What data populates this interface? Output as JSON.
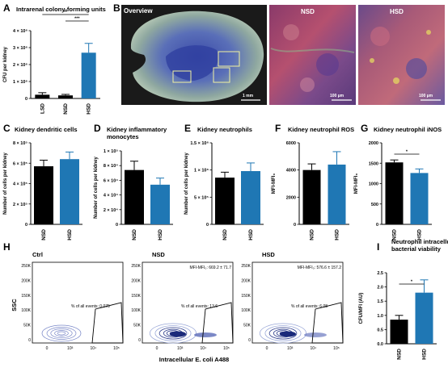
{
  "panels": {
    "A": "A",
    "B": "B",
    "C": "C",
    "D": "D",
    "E": "E",
    "F": "F",
    "G": "G",
    "H": "H",
    "I": "I"
  },
  "micrographs": {
    "overview_label": "Overview",
    "nsd_label": "NSD",
    "hsd_label": "HSD",
    "scale_overview": "1 mm",
    "scale_nsd": "100 µm",
    "scale_hsd": "100 µm"
  },
  "flow": {
    "ylabel": "SSC",
    "xlabel": "Intracellular E. coli A488",
    "yticks": [
      "250K",
      "200K",
      "150K",
      "100K",
      "50K",
      "0"
    ],
    "xticks": [
      "0",
      "10³",
      "10⁴",
      "10⁵"
    ],
    "plots": [
      {
        "title": "Ctrl",
        "gate_text": "% of all events:  0.075",
        "mfi": ""
      },
      {
        "title": "NSD",
        "gate_text": "% of all events:  13.6",
        "mfi": "MFI-MFI₀: 669.2 ± 71.7"
      },
      {
        "title": "HSD",
        "gate_text": "% of all events:  6.08",
        "mfi": "MFI-MFI₀: 576.6 ± 157.2"
      }
    ]
  },
  "chart_data": [
    {
      "panel": "A",
      "type": "bar",
      "title": "Intrarenal colony-forming units",
      "ylabel": "CFU per kidney",
      "categories": [
        "LSD",
        "NSD",
        "HSD"
      ],
      "values": [
        220000.0,
        180000.0,
        2700000.0
      ],
      "errors": [
        120000.0,
        60000.0,
        550000.0
      ],
      "colors": [
        "#000000",
        "#000000",
        "#1f77b4"
      ],
      "ylim": [
        0,
        4000000.0
      ],
      "yticks": [
        0,
        1000000.0,
        2000000.0,
        3000000.0,
        4000000.0
      ],
      "yticklabels": [
        "0",
        "1 × 10⁶",
        "2 × 10⁶",
        "3 × 10⁶",
        "4 × 10⁶"
      ],
      "significance": [
        {
          "from": 0,
          "to": 2,
          "label": "**"
        },
        {
          "from": 1,
          "to": 2,
          "label": "***"
        }
      ]
    },
    {
      "panel": "C",
      "type": "bar",
      "title": "Kidney dendritic cells",
      "ylabel": "Number of cells per kidney",
      "categories": [
        "NSD",
        "HSD"
      ],
      "values": [
        570000.0,
        640000.0
      ],
      "errors": [
        60000.0,
        70000.0
      ],
      "colors": [
        "#000000",
        "#1f77b4"
      ],
      "ylim": [
        0,
        800000.0
      ],
      "yticks": [
        0,
        200000.0,
        400000.0,
        600000.0,
        800000.0
      ],
      "yticklabels": [
        "0",
        "2 × 10⁵",
        "4 × 10⁵",
        "6 × 10⁵",
        "8 × 10⁵"
      ],
      "significance": []
    },
    {
      "panel": "D",
      "type": "bar",
      "title": "Kidney inflammatory monocytes",
      "ylabel": "Number of cells per kidney",
      "categories": [
        "NSD",
        "HSD"
      ],
      "values": [
        74000.0,
        54000.0
      ],
      "errors": [
        12000.0,
        9000.0
      ],
      "colors": [
        "#000000",
        "#1f77b4"
      ],
      "ylim": [
        0,
        100000.0
      ],
      "yticks": [
        0,
        20000.0,
        40000.0,
        60000.0,
        80000.0,
        100000.0
      ],
      "yticklabels": [
        "0",
        "2 × 10⁴",
        "4 × 10⁴",
        "6 × 10⁴",
        "8 × 10⁴",
        "1 × 10⁵"
      ],
      "significance": []
    },
    {
      "panel": "E",
      "type": "bar",
      "title": "Kidney neutrophils",
      "ylabel": "Number of cells per kidney",
      "categories": [
        "NSD",
        "HSD"
      ],
      "values": [
        860000.0,
        980000.0
      ],
      "errors": [
        100000.0,
        150000.0
      ],
      "colors": [
        "#000000",
        "#1f77b4"
      ],
      "ylim": [
        0,
        1500000.0
      ],
      "yticks": [
        0,
        500000.0,
        1000000.0,
        1500000.0
      ],
      "yticklabels": [
        "0",
        "5 × 10⁵",
        "1 × 10⁶",
        "1.5 × 10⁶"
      ],
      "significance": []
    },
    {
      "panel": "F",
      "type": "bar",
      "title": "Kidney neutrophil ROS",
      "ylabel": "MFI-MFI₀",
      "categories": [
        "NSD",
        "HSD"
      ],
      "values": [
        4000,
        4400
      ],
      "errors": [
        450,
        950
      ],
      "colors": [
        "#000000",
        "#1f77b4"
      ],
      "ylim": [
        0,
        6000
      ],
      "yticks": [
        0,
        2000,
        4000,
        6000
      ],
      "yticklabels": [
        "0",
        "2000",
        "4000",
        "6000"
      ],
      "significance": []
    },
    {
      "panel": "G",
      "type": "bar",
      "title": "Kidney neutrophil iNOS",
      "ylabel": "MFI-MFI₀",
      "categories": [
        "NSD",
        "HSD"
      ],
      "values": [
        1520,
        1260
      ],
      "errors": [
        60,
        100
      ],
      "colors": [
        "#000000",
        "#1f77b4"
      ],
      "ylim": [
        0,
        2000
      ],
      "yticks": [
        0,
        500,
        1000,
        1500,
        2000
      ],
      "yticklabels": [
        "0",
        "500",
        "1000",
        "1500",
        "2000"
      ],
      "significance": [
        {
          "from": 0,
          "to": 1,
          "label": "*"
        }
      ]
    },
    {
      "panel": "I",
      "type": "bar",
      "title": "Neutrophil intracellular bacterial viability",
      "ylabel": "CFU/MFI (AU)",
      "categories": [
        "NSD",
        "HSD"
      ],
      "values": [
        0.85,
        1.8
      ],
      "errors": [
        0.15,
        0.45
      ],
      "colors": [
        "#000000",
        "#1f77b4"
      ],
      "ylim": [
        0,
        2.5
      ],
      "yticks": [
        0,
        0.5,
        1.0,
        1.5,
        2.0,
        2.5
      ],
      "yticklabels": [
        "0.0",
        "0.5",
        "1.0",
        "1.5",
        "2.0",
        "2.5"
      ],
      "significance": [
        {
          "from": 0,
          "to": 1,
          "label": "*"
        }
      ]
    }
  ]
}
